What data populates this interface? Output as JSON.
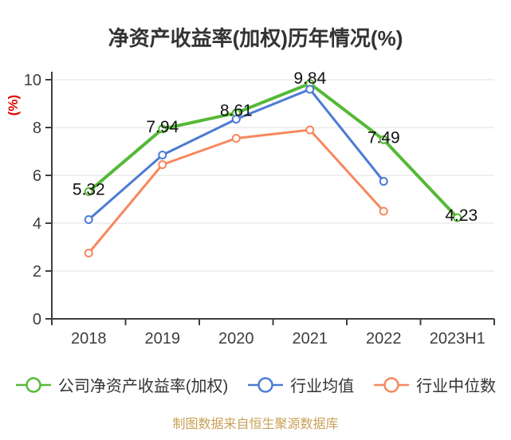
{
  "chart_data": {
    "type": "line",
    "title": "净资产收益率(加权)历年情况(%)",
    "ylabel": "(%)",
    "footer": "制图数据来自恒生聚源数据库",
    "categories": [
      "2018",
      "2019",
      "2020",
      "2021",
      "2022",
      "2023H1"
    ],
    "ylim": [
      0,
      10
    ],
    "yticks": [
      0,
      2,
      4,
      6,
      8,
      10
    ],
    "grid": true,
    "legend_position": "bottom",
    "series": [
      {
        "name": "公司净资产收益率(加权)",
        "color": "#55b937",
        "values": [
          5.32,
          7.94,
          8.61,
          9.84,
          7.49,
          4.23
        ],
        "data_labels": [
          "5.32",
          "7.94",
          "8.61",
          "9.84",
          "7.49",
          "4.23"
        ]
      },
      {
        "name": "行业均值",
        "color": "#4c7bd5",
        "values": [
          4.15,
          6.85,
          8.35,
          9.6,
          5.75,
          null
        ]
      },
      {
        "name": "行业中位数",
        "color": "#f6885e",
        "values": [
          2.75,
          6.45,
          7.55,
          7.9,
          4.5,
          null
        ]
      }
    ],
    "colors": {
      "axis": "#3f3f3f",
      "grid": "#e2e2e2",
      "tick_text": "#3d3d3d",
      "label_text": "#111111",
      "title_text": "#333333",
      "ylabel_text": "#e60000",
      "footer_text": "#c9a157"
    }
  }
}
